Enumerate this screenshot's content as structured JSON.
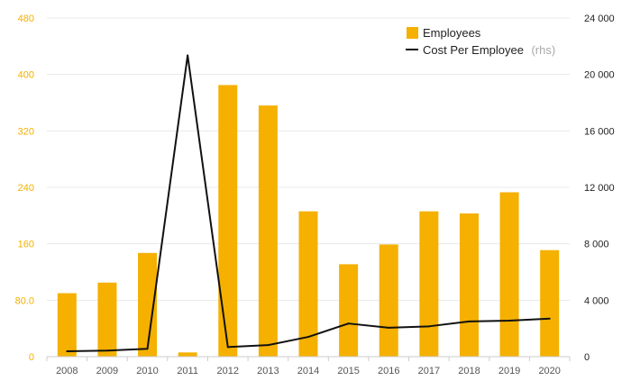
{
  "chart_data": {
    "type": "bar",
    "categories": [
      "2008",
      "2009",
      "2010",
      "2011",
      "2012",
      "2013",
      "2014",
      "2015",
      "2016",
      "2017",
      "2018",
      "2019",
      "2020"
    ],
    "series": [
      {
        "name": "Employees",
        "type": "bar",
        "axis": "left",
        "color": "#f5b000",
        "values": [
          90,
          105,
          147,
          6,
          385,
          356,
          206,
          131,
          159,
          206,
          203,
          233,
          151
        ]
      },
      {
        "name": "Cost Per Employee",
        "name_suffix": "(rhs)",
        "type": "line",
        "axis": "right",
        "color": "#111111",
        "values": [
          380,
          430,
          560,
          21350,
          680,
          820,
          1400,
          2350,
          2050,
          2150,
          2500,
          2550,
          2700
        ]
      }
    ],
    "left_axis": {
      "ylim": [
        0,
        480
      ],
      "ticks": [
        0,
        80,
        160,
        240,
        320,
        400,
        480
      ],
      "tick_labels": [
        "0",
        "80.0",
        "160",
        "240",
        "320",
        "400",
        "480"
      ],
      "color": "#f5b000"
    },
    "right_axis": {
      "ylim": [
        0,
        24000
      ],
      "ticks": [
        0,
        4000,
        8000,
        12000,
        16000,
        20000,
        24000
      ],
      "tick_labels": [
        "0",
        "4 000",
        "8 000",
        "12 000",
        "16 000",
        "20 000",
        "24 000"
      ],
      "color": "#222222"
    },
    "grid": true,
    "legend": "top-right",
    "title": "",
    "xlabel": "",
    "ylabel": ""
  }
}
